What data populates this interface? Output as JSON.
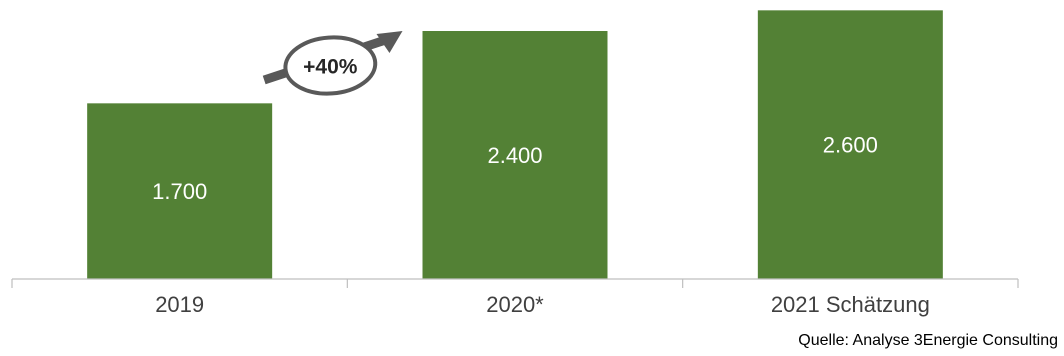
{
  "chart_data": {
    "type": "bar",
    "categories": [
      "2019",
      "2020*",
      "2021 Schätzung"
    ],
    "values": [
      1700,
      2400,
      2600
    ],
    "value_labels": [
      "1.700",
      "2.400",
      "2.600"
    ],
    "ylim": [
      0,
      2700
    ],
    "grid": false,
    "legend": "none",
    "bar_color": "#538135",
    "annotation": {
      "text": "+40%",
      "from": "2019",
      "to": "2020*"
    }
  },
  "source": "Quelle: Analyse 3Energie Consulting",
  "colors": {
    "bar": "#538135",
    "axis": "#bfbfbf",
    "arrow": "#595959",
    "text": "#404040"
  }
}
